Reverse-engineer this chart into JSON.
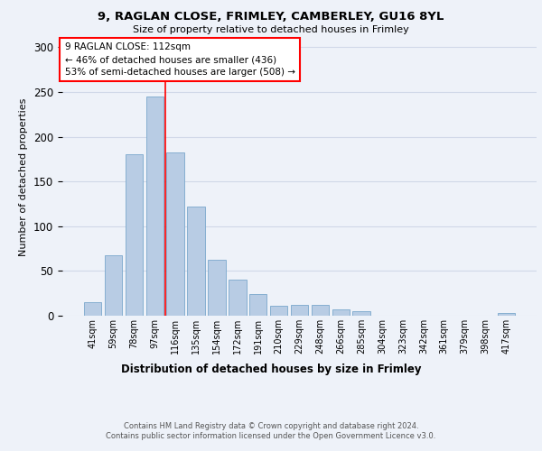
{
  "title_line1": "9, RAGLAN CLOSE, FRIMLEY, CAMBERLEY, GU16 8YL",
  "title_line2": "Size of property relative to detached houses in Frimley",
  "xlabel": "Distribution of detached houses by size in Frimley",
  "ylabel": "Number of detached properties",
  "categories": [
    "41sqm",
    "59sqm",
    "78sqm",
    "97sqm",
    "116sqm",
    "135sqm",
    "154sqm",
    "172sqm",
    "191sqm",
    "210sqm",
    "229sqm",
    "248sqm",
    "266sqm",
    "285sqm",
    "304sqm",
    "323sqm",
    "342sqm",
    "361sqm",
    "379sqm",
    "398sqm",
    "417sqm"
  ],
  "values": [
    15,
    68,
    180,
    245,
    182,
    122,
    63,
    40,
    24,
    11,
    12,
    12,
    7,
    5,
    0,
    0,
    0,
    0,
    0,
    0,
    3
  ],
  "bar_color": "#b8cce4",
  "bar_edge_color": "#7aa8cc",
  "marker_line_color": "red",
  "marker_bin": 3,
  "annotation_box_text": "9 RAGLAN CLOSE: 112sqm\n← 46% of detached houses are smaller (436)\n53% of semi-detached houses are larger (508) →",
  "annotation_box_color": "white",
  "annotation_box_edge_color": "red",
  "ylim": [
    0,
    310
  ],
  "yticks": [
    0,
    50,
    100,
    150,
    200,
    250,
    300
  ],
  "grid_color": "#d0d8e8",
  "footnote": "Contains HM Land Registry data © Crown copyright and database right 2024.\nContains public sector information licensed under the Open Government Licence v3.0.",
  "bg_color": "#eef2f9"
}
